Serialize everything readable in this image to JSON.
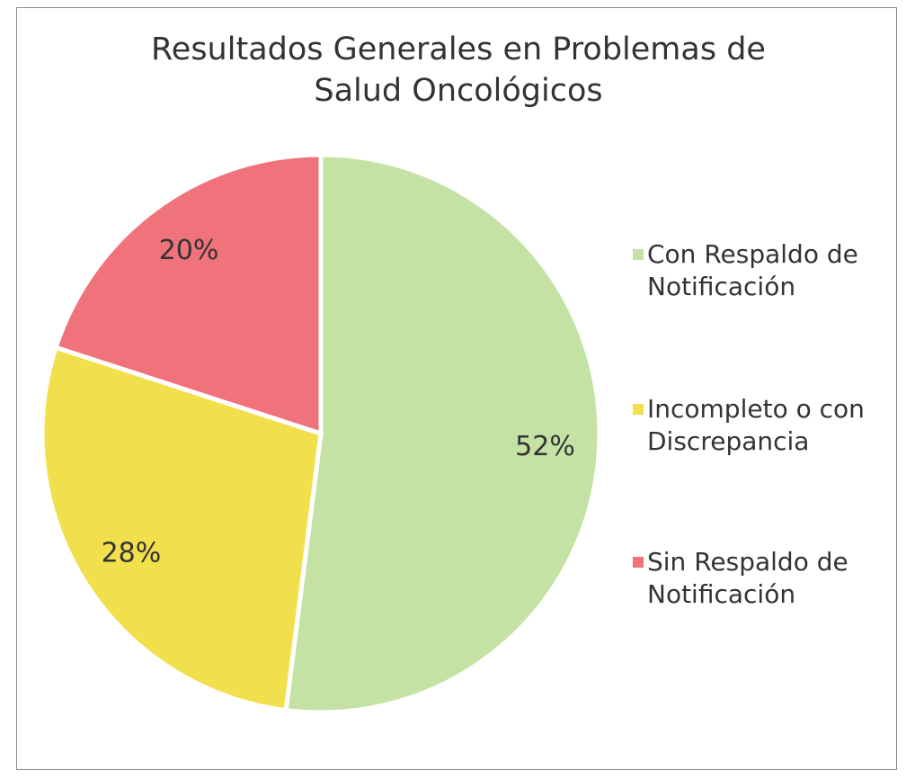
{
  "chart_data": {
    "type": "pie",
    "title": "Resultados Generales en Problemas de Salud Oncológicos",
    "categories": [
      "Con Respaldo de Notificación",
      "Incompleto o con Discrepancia",
      "Sin Respaldo de Notificación"
    ],
    "values": [
      52,
      28,
      20
    ],
    "value_labels": [
      "52%",
      "28%",
      "20%"
    ],
    "colors": [
      "#c5e2a5",
      "#f2df4c",
      "#f0737b"
    ],
    "legend": "right"
  }
}
